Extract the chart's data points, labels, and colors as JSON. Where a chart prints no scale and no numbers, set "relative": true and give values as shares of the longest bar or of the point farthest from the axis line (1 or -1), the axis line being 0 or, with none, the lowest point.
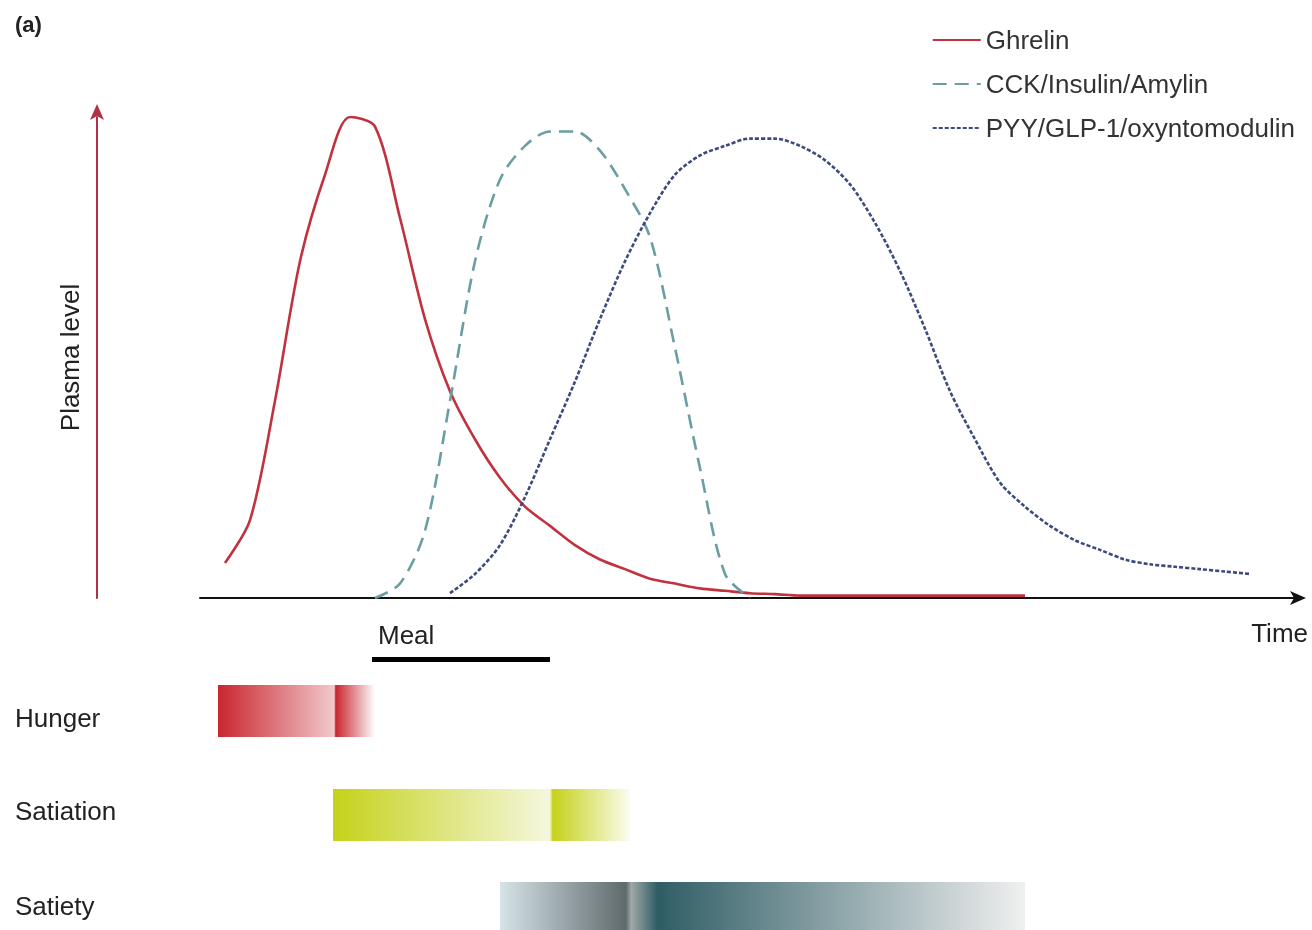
{
  "chart_data": {
    "type": "line",
    "relative": true,
    "title": "(a)",
    "xlabel": "Time",
    "ylabel": "Plasma level",
    "legend": "top right",
    "grid": false,
    "annotations": [
      "Meal",
      "Hunger",
      "Satiation",
      "Satiety"
    ],
    "categories": [
      null,
      null,
      null,
      null,
      null,
      null,
      null,
      null,
      null,
      null,
      null,
      null,
      null,
      null,
      null,
      null,
      null,
      null,
      null,
      null,
      null,
      null,
      null,
      null,
      null,
      null,
      null,
      null,
      null,
      null,
      null,
      null,
      null,
      null,
      null,
      null,
      null,
      null,
      null,
      null,
      null,
      null,
      null,
      null,
      null
    ],
    "series": [
      {
        "name": "Ghrelin",
        "color": "#c0323f",
        "line_style": "solid",
        "values": [
          null,
          0.073,
          0.162,
          0.41,
          0.7,
          0.88,
          1,
          0.98,
          0.79,
          0.58,
          0.43,
          0.33,
          0.25,
          0.19,
          0.15,
          0.11,
          0.08,
          0.06,
          0.04,
          0.03,
          0.02,
          0.015,
          0.01,
          0.008,
          0.005,
          0.005,
          0.005,
          0.005,
          0.005,
          0.005,
          0.005,
          0.005,
          0.005,
          0.005,
          null,
          null,
          null,
          null,
          null,
          null,
          null,
          null,
          null,
          null,
          null
        ]
      },
      {
        "name": "CCK/Insulin/Amylin",
        "color": "#6a9ea2",
        "line_style": "dashed",
        "values": [
          null,
          null,
          null,
          null,
          null,
          null,
          null,
          0,
          0.03,
          0.14,
          0.41,
          0.7,
          0.87,
          0.94,
          0.97,
          0.97,
          0.93,
          0.85,
          0.75,
          0.52,
          0.27,
          0.05,
          0,
          null,
          null,
          null,
          null,
          null,
          null,
          null,
          null,
          null,
          null,
          null,
          null,
          null,
          null,
          null,
          null,
          null,
          null,
          null,
          null,
          null,
          null
        ]
      },
      {
        "name": "PYY/GLP-1/oxyntomodulin",
        "color": "#3d4a7e",
        "line_style": "dotted",
        "values": [
          null,
          null,
          null,
          null,
          null,
          null,
          null,
          null,
          null,
          null,
          0.01,
          0.05,
          0.11,
          0.21,
          0.33,
          0.45,
          0.58,
          0.7,
          0.8,
          0.88,
          0.92,
          0.94,
          0.955,
          0.955,
          0.94,
          0.91,
          0.86,
          0.78,
          0.68,
          0.56,
          0.43,
          0.33,
          0.24,
          0.19,
          0.15,
          0.12,
          0.1,
          0.08,
          0.07,
          0.065,
          0.06,
          0.055,
          0.05,
          null,
          null
        ]
      }
    ]
  }
}
